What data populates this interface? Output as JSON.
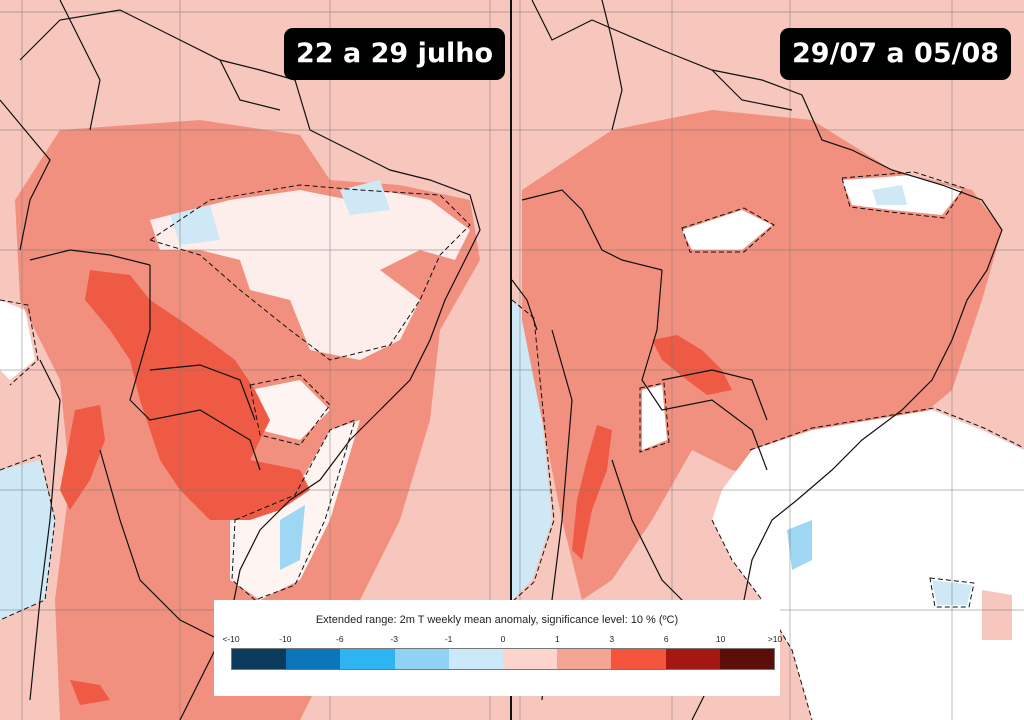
{
  "panels": [
    {
      "label": "22 a 29 julho"
    },
    {
      "label": "29/07 a 05/08"
    }
  ],
  "legend": {
    "title": "Extended range: 2m T weekly mean anomaly, significance level: 10 % (ºC)",
    "ticks": [
      "<-10",
      "-10",
      "-6",
      "-3",
      "-1",
      "0",
      "1",
      "3",
      "6",
      "10",
      ">10"
    ],
    "colors": [
      "#0c3a5c",
      "#0a75b8",
      "#2eb4f0",
      "#90d2f5",
      "#cbe9f8",
      "#fcd4cc",
      "#f5a393",
      "#f4533c",
      "#a51712",
      "#5c0f0a"
    ]
  },
  "colors": {
    "background_anomaly": "#f7c6bd",
    "warm_anomaly": "#f2907f",
    "strong_warm_anomaly": "#ee5a43",
    "neutral": "#ffffff",
    "cool_anomaly": "#c8e8f8"
  }
}
